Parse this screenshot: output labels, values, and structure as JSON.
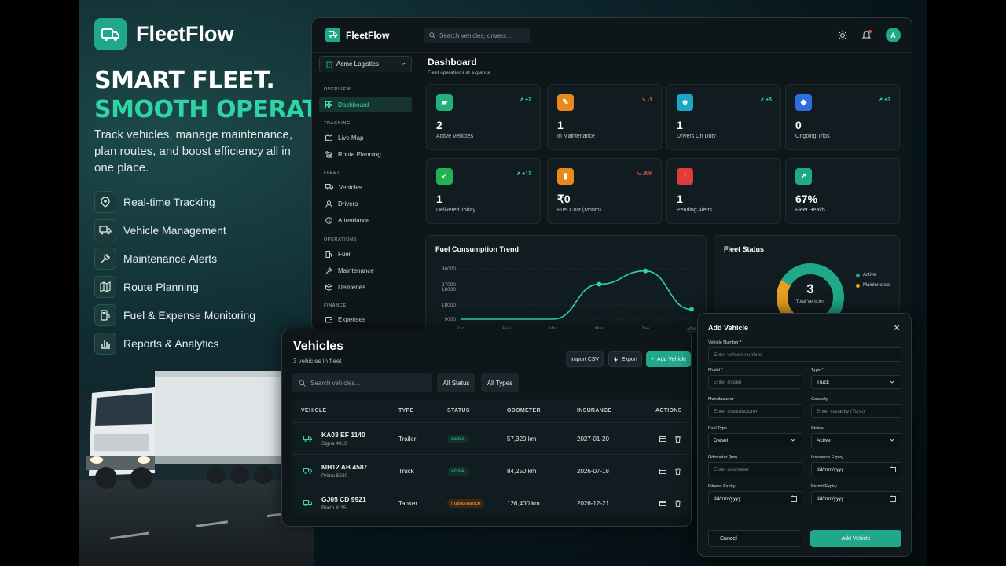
{
  "brand": {
    "name": "FleetFlow",
    "color": "#1fa98a",
    "accent": "#2ed3a6"
  },
  "hero": {
    "headline_1": "SMART FLEET.",
    "headline_2": "SMOOTH OPERATIONS.",
    "description": "Track vehicles, manage maintenance, plan routes, and boost efficiency all in one place.",
    "features": [
      {
        "label": "Real-time Tracking",
        "icon": "location-pin-icon"
      },
      {
        "label": "Vehicle Management",
        "icon": "truck-icon"
      },
      {
        "label": "Maintenance Alerts",
        "icon": "wrench-icon"
      },
      {
        "label": "Route Planning",
        "icon": "map-icon"
      },
      {
        "label": "Fuel & Expense Monitoring",
        "icon": "fuel-icon"
      },
      {
        "label": "Reports & Analytics",
        "icon": "bar-chart-icon"
      }
    ]
  },
  "dashboard": {
    "app_name": "FleetFlow",
    "search_placeholder": "Search vehicles, drivers...",
    "avatar_initial": "A",
    "org_name": "Acme Logistics",
    "sidebar": {
      "sections": [
        "OVERVIEW",
        "TRACKING",
        "FLEET",
        "OPERATIONS",
        "FINANCE"
      ],
      "items": [
        {
          "label": "Dashboard",
          "active": true
        },
        {
          "label": "Live Map"
        },
        {
          "label": "Route Planning"
        },
        {
          "label": "Vehicles"
        },
        {
          "label": "Drivers"
        },
        {
          "label": "Attendance"
        },
        {
          "label": "Fuel"
        },
        {
          "label": "Maintenance"
        },
        {
          "label": "Deliveries"
        },
        {
          "label": "Expenses"
        }
      ]
    },
    "title": "Dashboard",
    "subtitle": "Fleet operations at a glance",
    "stats": [
      {
        "value": "2",
        "label": "Active Vehicles",
        "trend": "↗ +2",
        "trend_color": "#36d6a6",
        "icon_color": "#22b07d"
      },
      {
        "value": "1",
        "label": "In Maintenance",
        "trend": "↘ -1",
        "trend_color": "#ef5a4a",
        "icon_color": "#e8891c"
      },
      {
        "value": "1",
        "label": "Drivers On Duty",
        "trend": "↗ +5",
        "trend_color": "#36d6a6",
        "icon_color": "#1aa6c4"
      },
      {
        "value": "0",
        "label": "Ongoing Trips",
        "trend": "↗ +3",
        "trend_color": "#36d6a6",
        "icon_color": "#2f6de0"
      },
      {
        "value": "1",
        "label": "Delivered Today",
        "trend": "↗ +12",
        "trend_color": "#36d6a6",
        "icon_color": "#22b050"
      },
      {
        "value": "₹0",
        "label": "Fuel Cost (Month)",
        "trend": "↘ -8%",
        "trend_color": "#ef5a4a",
        "icon_color": "#e8891c"
      },
      {
        "value": "1",
        "label": "Pending Alerts",
        "trend": "",
        "trend_color": "#36d6a6",
        "icon_color": "#e03b3b"
      },
      {
        "value": "67%",
        "label": "Fleet Health",
        "trend": "",
        "trend_color": "#36d6a6",
        "icon_color": "#1fa98a"
      }
    ],
    "fuel_panel_title": "Fuel Consumption Trend",
    "status_panel_title": "Fleet Status",
    "donut": {
      "total": "3",
      "total_label": "Total Vehicles",
      "legend": [
        "Active",
        "Maintenance"
      ],
      "colors": [
        "#1fa98a",
        "#e8a020"
      ]
    }
  },
  "chart_data": {
    "type": "line",
    "title": "Fuel Consumption Trend",
    "x": [
      "Jan",
      "Feb",
      "Mar",
      "Mar",
      "Jan",
      "Mar"
    ],
    "values": [
      0,
      0,
      0,
      25000,
      34500,
      7000
    ],
    "yticks": [
      "36000",
      "27000",
      "18000",
      "18000",
      "9000"
    ],
    "color": "#2ed3a6"
  },
  "vehicles": {
    "title": "Vehicles",
    "subtitle": "3 vehicles in fleet",
    "import_label": "Import CSV",
    "export_label": "Export",
    "add_label": "Add Vehicle",
    "search_placeholder": "Search vehicles...",
    "status_filter": "All Status",
    "type_filter": "All Types",
    "columns": [
      "VEHICLE",
      "TYPE",
      "STATUS",
      "ODOMETER",
      "INSURANCE",
      "ACTIONS"
    ],
    "rows": [
      {
        "plate": "KA03 EF 1140",
        "model": "Signa 4018",
        "type": "Trailer",
        "status": "active",
        "odometer": "57,320 km",
        "insurance": "2027-01-20"
      },
      {
        "plate": "MH12 AB 4587",
        "model": "Prima 5530",
        "type": "Truck",
        "status": "active",
        "odometer": "84,250 km",
        "insurance": "2026-07-18"
      },
      {
        "plate": "GJ05 CD 9921",
        "model": "Blazo X 35",
        "type": "Tanker",
        "status": "maintenance",
        "odometer": "126,400 km",
        "insurance": "2026-12-21"
      }
    ]
  },
  "modal": {
    "title": "Add Vehicle",
    "fields": {
      "vehicle_number": {
        "label": "Vehicle Number *",
        "placeholder": "Enter vehicle number"
      },
      "model": {
        "label": "Model *",
        "placeholder": "Enter model"
      },
      "type": {
        "label": "Type *",
        "value": "Truck"
      },
      "manufacturer": {
        "label": "Manufacturer",
        "placeholder": "Enter manufacturer"
      },
      "capacity": {
        "label": "Capacity",
        "placeholder": "Enter capacity (Tons)"
      },
      "fuel_type": {
        "label": "Fuel Type",
        "value": "Diesel"
      },
      "status": {
        "label": "Status",
        "value": "Active"
      },
      "odometer": {
        "label": "Odometer (km)",
        "placeholder": "Enter odometer"
      },
      "insurance_expiry": {
        "label": "Insurance Expiry",
        "placeholder": "dd/mm/yyyy"
      },
      "fitness_expiry": {
        "label": "Fitness Expiry",
        "placeholder": "dd/mm/yyyy"
      },
      "permit_expiry": {
        "label": "Permit Expiry",
        "placeholder": "dd/mm/yyyy"
      }
    },
    "cancel_label": "Cancel",
    "submit_label": "Add Vehicle"
  }
}
